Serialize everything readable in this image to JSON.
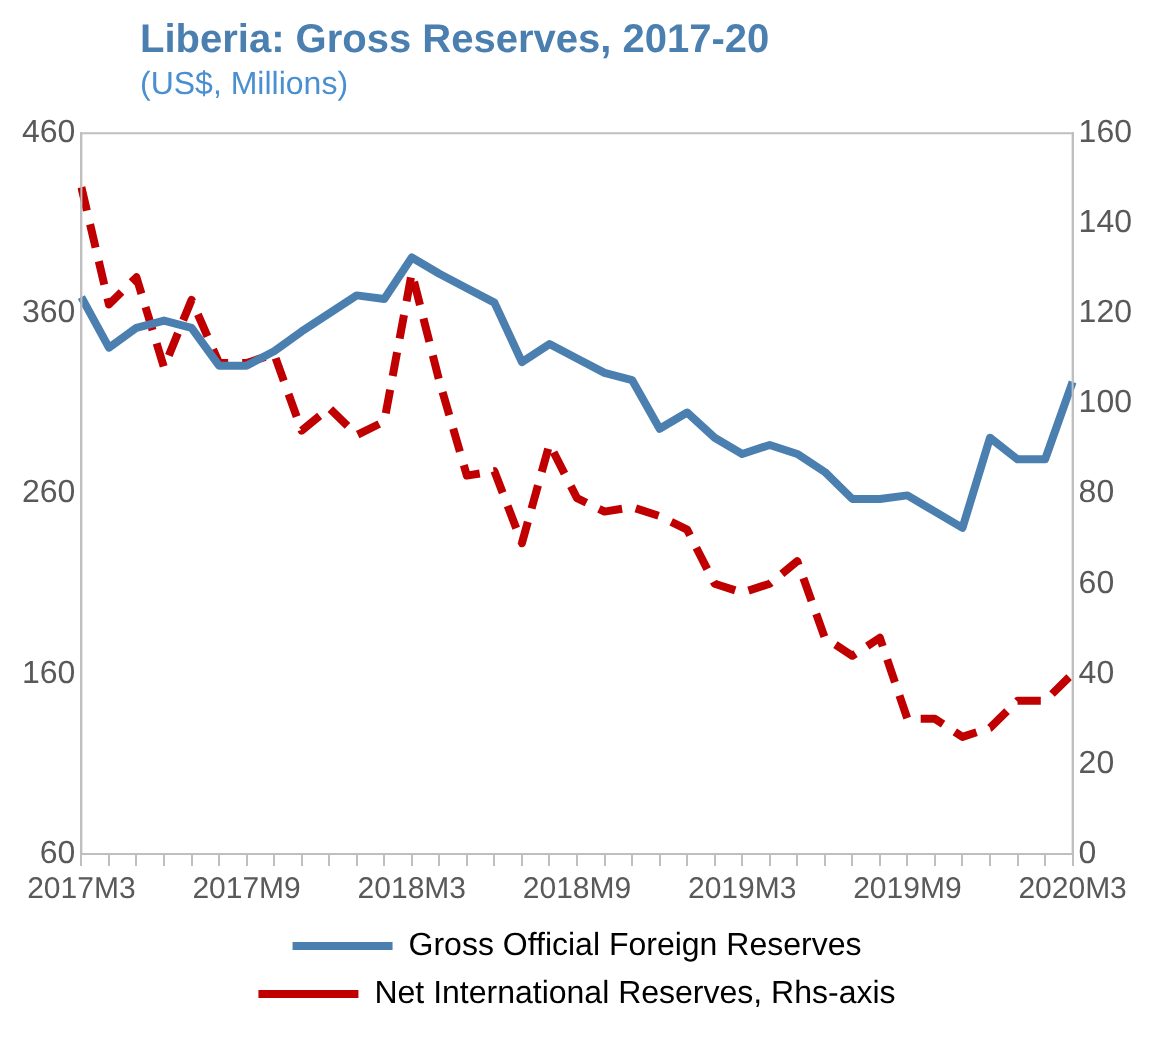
{
  "chart_data": {
    "type": "line",
    "title": "Liberia: Gross Reserves, 2017-20",
    "subtitle": "(US$, Millions)",
    "categories": [
      "2017M3",
      null,
      null,
      null,
      null,
      null,
      "2017M9",
      null,
      null,
      null,
      null,
      null,
      "2018M3",
      null,
      null,
      null,
      null,
      null,
      "2018M9",
      null,
      null,
      null,
      null,
      null,
      "2019M3",
      null,
      null,
      null,
      null,
      null,
      "2019M9",
      null,
      null,
      null,
      null,
      null,
      "2020M3"
    ],
    "series": [
      {
        "name": "Gross Official Foreign Reserves",
        "color": "#4a7fb0",
        "line_style": "solid",
        "values": [
          369,
          341,
          352,
          356,
          352,
          331,
          331,
          339,
          350,
          360,
          370,
          368,
          391,
          382,
          374,
          366,
          333,
          343,
          335,
          327,
          323,
          296,
          305,
          291,
          282,
          287,
          282,
          272,
          257,
          257,
          259,
          250,
          241,
          291,
          279,
          279,
          322
        ]
      },
      {
        "name": "Net International Reserves, Rhs-axis",
        "color": "#c00000",
        "line_style": "dashed",
        "axis": "y2",
        "values": [
          148,
          122,
          128,
          108,
          123,
          109,
          109,
          111,
          94,
          99,
          93,
          96,
          129,
          105,
          84,
          85,
          69,
          91,
          79,
          76,
          77,
          75,
          72,
          60,
          58,
          60,
          65,
          48,
          44,
          48,
          30,
          30,
          26,
          28,
          34,
          34,
          40
        ]
      }
    ],
    "ylim": [
      60,
      460
    ],
    "yticks": [
      60,
      160,
      260,
      360,
      460
    ],
    "y2lim": [
      0,
      160
    ],
    "y2ticks": [
      0,
      20,
      40,
      60,
      80,
      100,
      120,
      140,
      160
    ],
    "grid": false,
    "legend": "bottom",
    "marker": "none"
  }
}
